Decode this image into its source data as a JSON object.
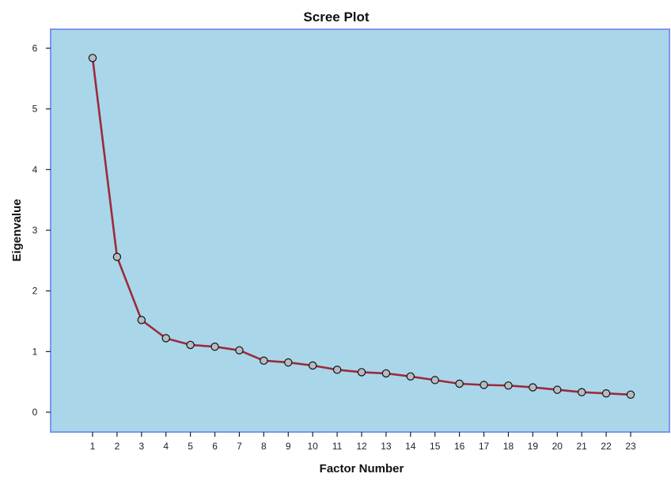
{
  "chart_data": {
    "type": "line",
    "title": "Scree Plot",
    "xlabel": "Factor Number",
    "ylabel": "Eigenvalue",
    "x": [
      1,
      2,
      3,
      4,
      5,
      6,
      7,
      8,
      9,
      10,
      11,
      12,
      13,
      14,
      15,
      16,
      17,
      18,
      19,
      20,
      21,
      22,
      23
    ],
    "y_ticks": [
      0,
      1,
      2,
      3,
      4,
      5,
      6
    ],
    "ylim": [
      -0.35,
      6.3
    ],
    "series": [
      {
        "values": [
          5.84,
          2.56,
          1.52,
          1.22,
          1.11,
          1.08,
          1.02,
          0.85,
          0.82,
          0.77,
          0.7,
          0.66,
          0.64,
          0.59,
          0.53,
          0.47,
          0.45,
          0.44,
          0.41,
          0.37,
          0.33,
          0.31,
          0.29
        ]
      }
    ],
    "grid": false,
    "legend": "none",
    "markers": "circle",
    "colors": {
      "plot_background": "#aad6ea",
      "plot_border": "#7f95ea",
      "line": "#9b2b3a",
      "marker_fill": "#b6bcc0",
      "marker_stroke": "#111111",
      "axis": "#222222"
    }
  }
}
